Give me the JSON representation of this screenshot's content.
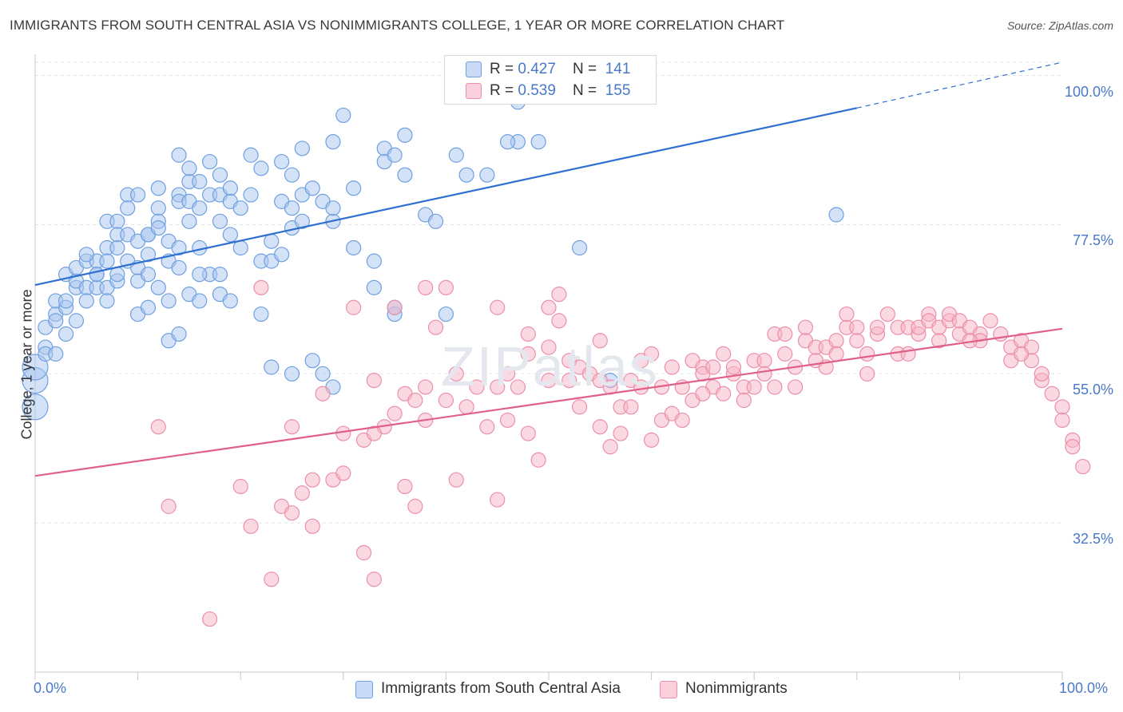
{
  "header": {
    "title": "IMMIGRANTS FROM SOUTH CENTRAL ASIA VS NONIMMIGRANTS COLLEGE, 1 YEAR OR MORE CORRELATION CHART",
    "source": "Source: ZipAtlas.com"
  },
  "watermark": {
    "main": "ZIP",
    "sub": "atlas"
  },
  "legend_top": {
    "rows": [
      {
        "r_label": "R = ",
        "r_value": "0.427",
        "n_label": "N = ",
        "n_value": "141",
        "color": "#a9c6f0"
      },
      {
        "r_label": "R = ",
        "r_value": "0.539",
        "n_label": "N = ",
        "n_value": "155",
        "color": "#f5b3c6"
      }
    ]
  },
  "legend_bottom": {
    "items": [
      {
        "label": "Immigrants from South Central Asia",
        "color": "#a9c6f0"
      },
      {
        "label": "Nonimmigrants",
        "color": "#f5b3c6"
      }
    ]
  },
  "chart_data": {
    "type": "scatter",
    "title": "IMMIGRANTS FROM SOUTH CENTRAL ASIA VS NONIMMIGRANTS COLLEGE, 1 YEAR OR MORE CORRELATION CHART",
    "xlabel": "",
    "ylabel": "College, 1 year or more",
    "xlim": [
      0,
      100
    ],
    "ylim": [
      10,
      102
    ],
    "x_tick_labels": [
      "0.0%",
      "100.0%"
    ],
    "y_ticks": [
      32.5,
      55.0,
      77.5,
      100.0
    ],
    "y_tick_labels": [
      "32.5%",
      "55.0%",
      "77.5%",
      "100.0%"
    ],
    "grid": true,
    "legend_position": "top-center",
    "series": [
      {
        "name": "Immigrants from South Central Asia",
        "color": "#6fa0e0",
        "fill": "#a9c6f0",
        "r": 0.427,
        "n": 141,
        "trend": {
          "x": [
            0,
            80
          ],
          "y": [
            68.4,
            95.1
          ],
          "dashed_to": [
            100,
            102
          ]
        },
        "points": [
          [
            0,
            50
          ],
          [
            0,
            54
          ],
          [
            0,
            56
          ],
          [
            1,
            59
          ],
          [
            1,
            58
          ],
          [
            1,
            62
          ],
          [
            2,
            64
          ],
          [
            2,
            63
          ],
          [
            2,
            66
          ],
          [
            3,
            61
          ],
          [
            3,
            65
          ],
          [
            3,
            66
          ],
          [
            3,
            70
          ],
          [
            4,
            63
          ],
          [
            4,
            68
          ],
          [
            4,
            69
          ],
          [
            4,
            71
          ],
          [
            5,
            68
          ],
          [
            5,
            72
          ],
          [
            5,
            66
          ],
          [
            6,
            72
          ],
          [
            6,
            70
          ],
          [
            6,
            68
          ],
          [
            6,
            70
          ],
          [
            7,
            68
          ],
          [
            7,
            74
          ],
          [
            7,
            78
          ],
          [
            7,
            72
          ],
          [
            8,
            78
          ],
          [
            8,
            76
          ],
          [
            8,
            69
          ],
          [
            8,
            74
          ],
          [
            9,
            82
          ],
          [
            9,
            80
          ],
          [
            9,
            72
          ],
          [
            9,
            76
          ],
          [
            10,
            75
          ],
          [
            10,
            71
          ],
          [
            10,
            69
          ],
          [
            10,
            64
          ],
          [
            11,
            76
          ],
          [
            11,
            73
          ],
          [
            11,
            76
          ],
          [
            11,
            65
          ],
          [
            12,
            80
          ],
          [
            12,
            78
          ],
          [
            12,
            68
          ],
          [
            12,
            77
          ],
          [
            13,
            72
          ],
          [
            13,
            75
          ],
          [
            13,
            66
          ],
          [
            13,
            60
          ],
          [
            14,
            82
          ],
          [
            14,
            81
          ],
          [
            14,
            74
          ],
          [
            14,
            71
          ],
          [
            14,
            61
          ],
          [
            15,
            78
          ],
          [
            15,
            84
          ],
          [
            15,
            81
          ],
          [
            15,
            86
          ],
          [
            15,
            67
          ],
          [
            16,
            74
          ],
          [
            16,
            80
          ],
          [
            16,
            84
          ],
          [
            16,
            66
          ],
          [
            17,
            82
          ],
          [
            17,
            87
          ],
          [
            17,
            70
          ],
          [
            18,
            78
          ],
          [
            18,
            82
          ],
          [
            18,
            70
          ],
          [
            18,
            67
          ],
          [
            19,
            83
          ],
          [
            19,
            81
          ],
          [
            19,
            76
          ],
          [
            20,
            80
          ],
          [
            21,
            82
          ],
          [
            21,
            88
          ],
          [
            22,
            86
          ],
          [
            22,
            72
          ],
          [
            22,
            64
          ],
          [
            23,
            75
          ],
          [
            23,
            72
          ],
          [
            23,
            56
          ],
          [
            24,
            81
          ],
          [
            24,
            87
          ],
          [
            25,
            77
          ],
          [
            25,
            85
          ],
          [
            25,
            55
          ],
          [
            26,
            82
          ],
          [
            26,
            89
          ],
          [
            27,
            83
          ],
          [
            27,
            57
          ],
          [
            28,
            81
          ],
          [
            28,
            55
          ],
          [
            29,
            90
          ],
          [
            29,
            78
          ],
          [
            29,
            53
          ],
          [
            30,
            94
          ],
          [
            31,
            83
          ],
          [
            33,
            72
          ],
          [
            34,
            89
          ],
          [
            34,
            87
          ],
          [
            35,
            88
          ],
          [
            35,
            64
          ],
          [
            36,
            91
          ],
          [
            36,
            85
          ],
          [
            38,
            79
          ],
          [
            39,
            78
          ],
          [
            40,
            64
          ],
          [
            41,
            88
          ],
          [
            42,
            85
          ],
          [
            45,
            97
          ],
          [
            47,
            96
          ],
          [
            49,
            90
          ],
          [
            53,
            74
          ],
          [
            56,
            54
          ],
          [
            78,
            79
          ],
          [
            5,
            73
          ],
          [
            8,
            70
          ],
          [
            11,
            70
          ],
          [
            16,
            70
          ],
          [
            20,
            74
          ],
          [
            24,
            73
          ],
          [
            29,
            80
          ],
          [
            35,
            65
          ],
          [
            44,
            85
          ],
          [
            47,
            90
          ],
          [
            14,
            88
          ],
          [
            26,
            78
          ],
          [
            31,
            74
          ],
          [
            46,
            90
          ],
          [
            12,
            83
          ],
          [
            19,
            66
          ],
          [
            2,
            58
          ],
          [
            10,
            82
          ],
          [
            33,
            68
          ],
          [
            7,
            66
          ],
          [
            18,
            85
          ],
          [
            25,
            80
          ]
        ]
      },
      {
        "name": "Nonimmigrants",
        "color": "#ec8faa",
        "fill": "#f5b3c6",
        "r": 0.539,
        "n": 155,
        "trend": {
          "x": [
            0,
            100
          ],
          "y": [
            39.6,
            61.8
          ]
        },
        "points": [
          [
            12,
            47
          ],
          [
            13,
            35
          ],
          [
            17,
            18
          ],
          [
            20,
            38
          ],
          [
            21,
            32
          ],
          [
            22,
            68
          ],
          [
            23,
            24
          ],
          [
            24,
            35
          ],
          [
            25,
            34
          ],
          [
            25,
            47
          ],
          [
            26,
            37
          ],
          [
            27,
            32
          ],
          [
            27,
            39
          ],
          [
            28,
            52
          ],
          [
            29,
            39
          ],
          [
            30,
            46
          ],
          [
            30,
            40
          ],
          [
            31,
            65
          ],
          [
            32,
            28
          ],
          [
            32,
            45
          ],
          [
            33,
            54
          ],
          [
            33,
            24
          ],
          [
            34,
            47
          ],
          [
            35,
            49
          ],
          [
            35,
            65
          ],
          [
            36,
            52
          ],
          [
            36,
            38
          ],
          [
            37,
            51
          ],
          [
            37,
            35
          ],
          [
            38,
            48
          ],
          [
            38,
            68
          ],
          [
            39,
            62
          ],
          [
            40,
            68
          ],
          [
            40,
            51
          ],
          [
            41,
            55
          ],
          [
            41,
            39
          ],
          [
            42,
            50
          ],
          [
            43,
            53
          ],
          [
            44,
            47
          ],
          [
            45,
            53
          ],
          [
            45,
            65
          ],
          [
            45,
            36
          ],
          [
            46,
            55
          ],
          [
            46,
            48
          ],
          [
            47,
            53
          ],
          [
            48,
            46
          ],
          [
            48,
            61
          ],
          [
            49,
            42
          ],
          [
            50,
            59
          ],
          [
            50,
            54
          ],
          [
            50,
            65
          ],
          [
            51,
            63
          ],
          [
            51,
            67
          ],
          [
            52,
            54
          ],
          [
            52,
            57
          ],
          [
            53,
            50
          ],
          [
            53,
            56
          ],
          [
            54,
            55
          ],
          [
            55,
            47
          ],
          [
            55,
            54
          ],
          [
            56,
            53
          ],
          [
            56,
            44
          ],
          [
            57,
            50
          ],
          [
            57,
            46
          ],
          [
            58,
            54
          ],
          [
            58,
            50
          ],
          [
            59,
            57
          ],
          [
            59,
            53
          ],
          [
            60,
            58
          ],
          [
            60,
            45
          ],
          [
            61,
            53
          ],
          [
            61,
            48
          ],
          [
            62,
            56
          ],
          [
            62,
            49
          ],
          [
            63,
            53
          ],
          [
            63,
            48
          ],
          [
            64,
            57
          ],
          [
            64,
            51
          ],
          [
            65,
            56
          ],
          [
            65,
            55
          ],
          [
            66,
            53
          ],
          [
            66,
            56
          ],
          [
            67,
            58
          ],
          [
            67,
            52
          ],
          [
            68,
            55
          ],
          [
            68,
            56
          ],
          [
            69,
            53
          ],
          [
            69,
            51
          ],
          [
            70,
            57
          ],
          [
            70,
            53
          ],
          [
            71,
            57
          ],
          [
            71,
            55
          ],
          [
            72,
            61
          ],
          [
            72,
            53
          ],
          [
            73,
            61
          ],
          [
            73,
            58
          ],
          [
            74,
            56
          ],
          [
            74,
            53
          ],
          [
            75,
            60
          ],
          [
            75,
            62
          ],
          [
            76,
            57
          ],
          [
            76,
            59
          ],
          [
            77,
            59
          ],
          [
            77,
            56
          ],
          [
            78,
            60
          ],
          [
            78,
            58
          ],
          [
            79,
            62
          ],
          [
            79,
            64
          ],
          [
            80,
            60
          ],
          [
            80,
            62
          ],
          [
            81,
            58
          ],
          [
            81,
            55
          ],
          [
            82,
            61
          ],
          [
            82,
            62
          ],
          [
            83,
            64
          ],
          [
            84,
            58
          ],
          [
            84,
            62
          ],
          [
            85,
            62
          ],
          [
            85,
            58
          ],
          [
            86,
            61
          ],
          [
            86,
            62
          ],
          [
            87,
            64
          ],
          [
            87,
            63
          ],
          [
            88,
            60
          ],
          [
            88,
            62
          ],
          [
            89,
            63
          ],
          [
            89,
            64
          ],
          [
            90,
            61
          ],
          [
            90,
            63
          ],
          [
            91,
            62
          ],
          [
            92,
            61
          ],
          [
            92,
            60
          ],
          [
            93,
            63
          ],
          [
            94,
            61
          ],
          [
            95,
            57
          ],
          [
            95,
            59
          ],
          [
            96,
            60
          ],
          [
            97,
            59
          ],
          [
            97,
            57
          ],
          [
            98,
            54
          ],
          [
            98,
            55
          ],
          [
            99,
            52
          ],
          [
            100,
            50
          ],
          [
            100,
            48
          ],
          [
            101,
            45
          ],
          [
            101,
            44
          ],
          [
            102,
            41
          ],
          [
            96,
            58
          ],
          [
            91,
            60
          ],
          [
            65,
            52
          ],
          [
            48,
            58
          ],
          [
            55,
            60
          ],
          [
            38,
            53
          ],
          [
            33,
            46
          ]
        ]
      }
    ]
  }
}
